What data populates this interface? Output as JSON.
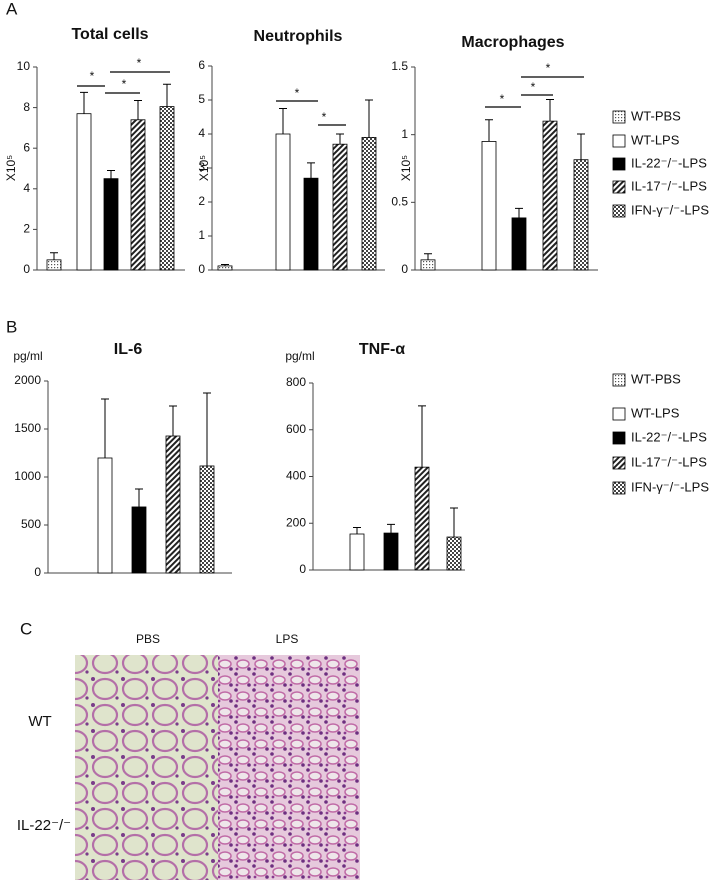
{
  "panels": {
    "a": "A",
    "b": "B",
    "c": "C"
  },
  "chart_data": [
    {
      "type": "bar",
      "title": "Total cells",
      "ylabel": "X10⁵",
      "categories": [
        null,
        null,
        null,
        null,
        null
      ],
      "values": [
        0.5,
        7.7,
        4.5,
        7.4,
        8.05
      ],
      "errors": [
        0.35,
        1.05,
        0.4,
        0.95,
        1.1
      ],
      "fills": [
        "dots",
        "white",
        "black",
        "stripes",
        "checks"
      ],
      "ylim": [
        0,
        10
      ],
      "yticks": [
        0,
        2,
        4,
        6,
        8,
        10
      ],
      "annotations": [
        "*",
        "*",
        "*"
      ]
    },
    {
      "type": "bar",
      "title": "Neutrophils",
      "ylabel": "X10⁵",
      "categories": [
        null,
        null,
        null,
        null,
        null
      ],
      "values": [
        0.12,
        4.0,
        2.7,
        3.7,
        3.9
      ],
      "errors": [
        0.04,
        0.75,
        0.45,
        0.3,
        1.1
      ],
      "fills": [
        "dots",
        "white",
        "black",
        "stripes",
        "checks"
      ],
      "ylim": [
        0,
        6
      ],
      "yticks": [
        0,
        1,
        2,
        3,
        4,
        5,
        6
      ],
      "annotations": [
        "*",
        "*"
      ]
    },
    {
      "type": "bar",
      "title": "Macrophages",
      "ylabel": "X10⁵",
      "categories": [
        null,
        null,
        null,
        null,
        null
      ],
      "values": [
        0.075,
        0.95,
        0.385,
        1.1,
        0.815
      ],
      "errors": [
        0.045,
        0.16,
        0.07,
        0.16,
        0.19
      ],
      "fills": [
        "dots",
        "white",
        "black",
        "stripes",
        "checks"
      ],
      "ylim": [
        0,
        1.5
      ],
      "yticks": [
        0,
        0.5,
        1,
        1.5
      ],
      "annotations": [
        "*",
        "*",
        "*"
      ]
    },
    {
      "type": "bar",
      "title": "IL-6",
      "ylabel": "pg/ml",
      "categories": [
        null,
        null,
        null,
        null,
        null
      ],
      "values": [
        0,
        1198,
        688,
        1427,
        1115
      ],
      "errors": [
        null,
        614,
        187,
        313,
        760
      ],
      "fills": [
        "dots",
        "white",
        "black",
        "stripes",
        "checks"
      ],
      "ylim": [
        0,
        2000
      ],
      "yticks": [
        0,
        500,
        1000,
        1500,
        2000
      ]
    },
    {
      "type": "bar",
      "title": "TNF-α",
      "ylabel": "pg/ml",
      "categories": [
        null,
        null,
        null,
        null,
        null
      ],
      "values": [
        0,
        154,
        158,
        440,
        141
      ],
      "errors": [
        null,
        28,
        37,
        262,
        124
      ],
      "fills": [
        "dots",
        "white",
        "black",
        "stripes",
        "checks"
      ],
      "ylim": [
        0,
        800
      ],
      "yticks": [
        0,
        200,
        400,
        600,
        800
      ]
    }
  ],
  "legends": [
    {
      "entries": [
        {
          "name": "WT-PBS",
          "fill": "dots"
        },
        {
          "name": "WT-LPS",
          "fill": "white"
        },
        {
          "name": "IL-22⁻/⁻-LPS",
          "fill": "black"
        },
        {
          "name": "IL-17⁻/⁻-LPS",
          "fill": "stripes"
        },
        {
          "name": "IFN-γ⁻/⁻-LPS",
          "fill": "checks"
        }
      ]
    },
    {
      "entries": [
        {
          "name": "WT-PBS",
          "fill": "dots"
        },
        {
          "name": "WT-LPS",
          "fill": "white"
        },
        {
          "name": "IL-22⁻/⁻-LPS",
          "fill": "black"
        },
        {
          "name": "IL-17⁻/⁻-LPS",
          "fill": "stripes"
        },
        {
          "name": "IFN-γ⁻/⁻-LPS",
          "fill": "checks"
        }
      ]
    }
  ],
  "histology": {
    "columns": [
      "PBS",
      "LPS"
    ],
    "rows": [
      "WT",
      "IL-22⁻/⁻"
    ]
  }
}
